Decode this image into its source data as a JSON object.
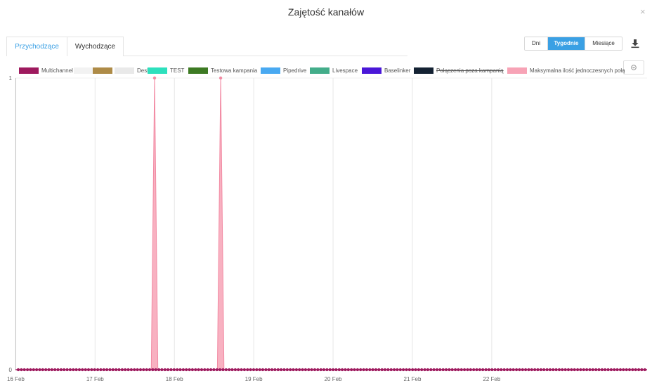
{
  "dialog": {
    "title": "Zajętość kanałów",
    "close_label": "×"
  },
  "tabs": [
    {
      "label": "Przychodzące",
      "active": true
    },
    {
      "label": "Wychodzące",
      "active": false
    }
  ],
  "period": [
    {
      "label": "Dni",
      "active": false
    },
    {
      "label": "Tygodnie",
      "active": true
    },
    {
      "label": "Miesiące",
      "active": false
    }
  ],
  "icons": {
    "download": "download-icon",
    "toggle": "chevron-circle-icon",
    "close": "close-icon"
  },
  "colors": {
    "accent": "#3aa0e4"
  },
  "chart_data": {
    "type": "area",
    "title": "",
    "xlabel": "",
    "ylabel": "",
    "x_range": [
      "15 Feb 23:55",
      "23 Feb 23:00"
    ],
    "ylim": [
      0,
      1
    ],
    "y_ticks": [
      "0",
      "1"
    ],
    "x_ticks": [
      "16 Feb",
      "17 Feb",
      "18 Feb",
      "19 Feb",
      "20 Feb",
      "21 Feb",
      "22 Feb"
    ],
    "grid": "vertical",
    "legend_position": "top",
    "legend": [
      {
        "name": "Multichannel",
        "color": "#9e1a5e",
        "hidden": false
      },
      {
        "name": "",
        "color": "#f2f2f2",
        "hidden": false
      },
      {
        "name": "",
        "color": "#ae8b47",
        "hidden": false
      },
      {
        "name": "Desk",
        "color": "#e9e9e9",
        "hidden": false
      },
      {
        "name": "TEST",
        "color": "#2de0bd",
        "hidden": false
      },
      {
        "name": "Testowa kampania",
        "color": "#3d7a23",
        "hidden": false
      },
      {
        "name": "Pipedrive",
        "color": "#49a9f1",
        "hidden": false
      },
      {
        "name": "Livespace",
        "color": "#43ad8a",
        "hidden": false
      },
      {
        "name": "Baselinker",
        "color": "#4a17d8",
        "hidden": false
      },
      {
        "name": "Połączenia poza kampanią",
        "color": "#142233",
        "hidden": true
      },
      {
        "name": "Maksymalna ilość jednoczesnych połą",
        "color": "#f7a3b6",
        "hidden": false
      }
    ],
    "series": [
      {
        "name": "Multichannel",
        "color": "#9e1a5e",
        "markers": true,
        "points": [
          [
            "16 Feb",
            0
          ],
          [
            "23 Feb",
            0
          ]
        ]
      },
      {
        "name": "Maksymalna ilość jednoczesnych połą",
        "color": "#f7a3b6",
        "points": [
          [
            "17 Feb 17:00",
            0
          ],
          [
            "17 Feb 18:00",
            1
          ],
          [
            "17 Feb 19:00",
            0
          ],
          [
            "18 Feb 13:00",
            0
          ],
          [
            "18 Feb 14:00",
            1
          ],
          [
            "18 Feb 15:00",
            0
          ]
        ]
      }
    ]
  }
}
